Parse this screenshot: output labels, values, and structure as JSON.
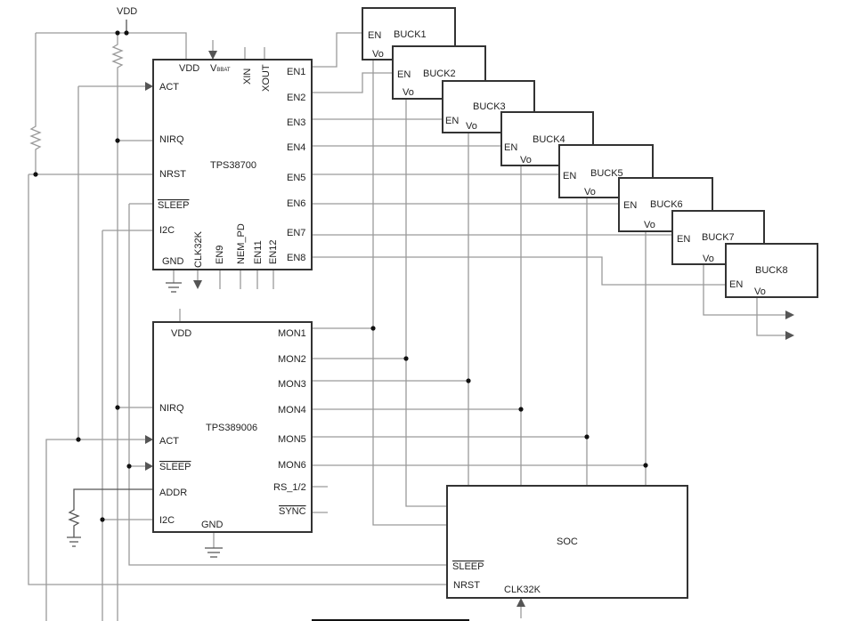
{
  "supply": {
    "vdd": "VDD"
  },
  "pmic": {
    "name": "TPS38700",
    "pins": {
      "vdd": "VDD",
      "vbbat_v": "V",
      "vbbat_sub": "BBAT",
      "xin": "XIN",
      "xout": "XOUT",
      "act": "ACT",
      "nirq": "NIRQ",
      "nrst": "NRST",
      "sleep": "SLEEP",
      "i2c": "I2C",
      "gnd": "GND",
      "clk32k": "CLK32K",
      "en9": "EN9",
      "nem_pd": "NEM_PD",
      "en11": "EN11",
      "en12": "EN12",
      "en": [
        "EN1",
        "EN2",
        "EN3",
        "EN4",
        "EN5",
        "EN6",
        "EN7",
        "EN8"
      ]
    }
  },
  "monitor": {
    "name": "TPS389006",
    "pins": {
      "vdd": "VDD",
      "nirq": "NIRQ",
      "act": "ACT",
      "sleep": "SLEEP",
      "addr": "ADDR",
      "i2c": "I2C",
      "gnd": "GND",
      "mon": [
        "MON1",
        "MON2",
        "MON3",
        "MON4",
        "MON5",
        "MON6"
      ],
      "rs": "RS_1/2",
      "sync": "SYNC"
    }
  },
  "bucks": [
    {
      "name": "BUCK1",
      "en": "EN",
      "vo": "Vo"
    },
    {
      "name": "BUCK2",
      "en": "EN",
      "vo": "Vo"
    },
    {
      "name": "BUCK3",
      "en": "EN",
      "vo": "Vo"
    },
    {
      "name": "BUCK4",
      "en": "EN",
      "vo": "Vo"
    },
    {
      "name": "BUCK5",
      "en": "EN",
      "vo": "Vo"
    },
    {
      "name": "BUCK6",
      "en": "EN",
      "vo": "Vo"
    },
    {
      "name": "BUCK7",
      "en": "EN",
      "vo": "Vo"
    },
    {
      "name": "BUCK8",
      "en": "EN",
      "vo": "Vo"
    }
  ],
  "soc": {
    "name": "SOC",
    "pins": {
      "sleep": "SLEEP",
      "nrst": "NRST",
      "clk32k": "CLK32K"
    }
  }
}
